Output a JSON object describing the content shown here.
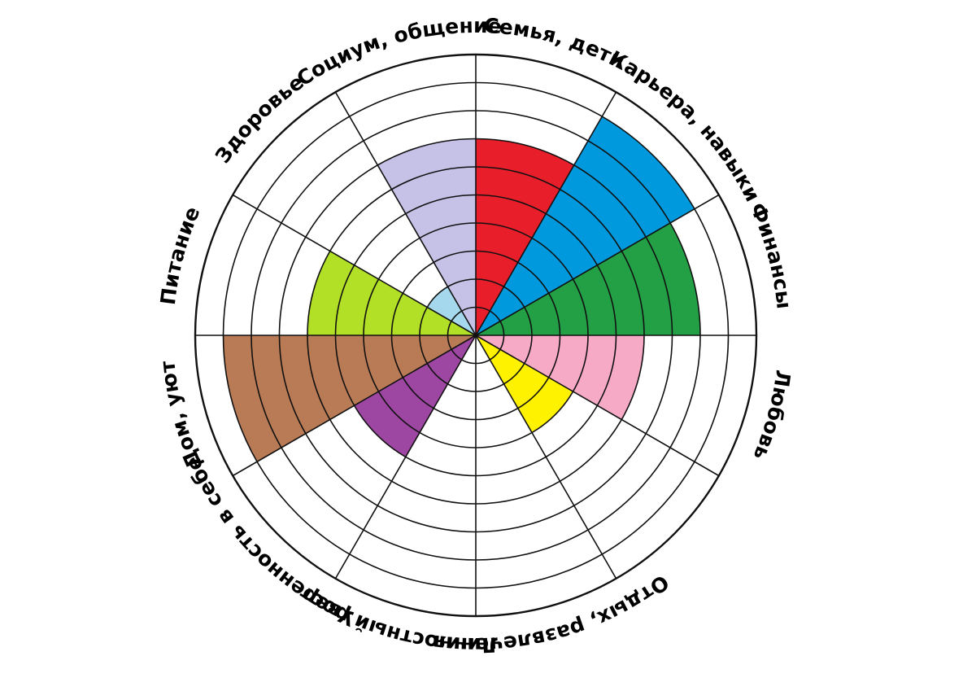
{
  "chart_data": {
    "type": "polar-area",
    "title": "",
    "rings": 10,
    "max_value": 10,
    "segments": [
      {
        "label": "Семья, дети",
        "value": 7,
        "color": "#e81f2b"
      },
      {
        "label": "Карьера, навыки",
        "value": 9,
        "color": "#0099dd"
      },
      {
        "label": "Финансы",
        "value": 8,
        "color": "#23a046"
      },
      {
        "label": "Любовь",
        "value": 6,
        "color": "#f7aac6"
      },
      {
        "label": "",
        "value": 4,
        "color": "#fff200"
      },
      {
        "label": "Отдых, развлечения",
        "value": 0,
        "color": "#ffffff"
      },
      {
        "label": "Личностный рост",
        "value": 0,
        "color": "#ffffff"
      },
      {
        "label": "Уверенность в себе",
        "value": 5,
        "color": "#9d47a3"
      },
      {
        "label": "Дом, уют",
        "value": 9,
        "color": "#b97b55"
      },
      {
        "label": "Питание",
        "value": 6,
        "color": "#b2e026"
      },
      {
        "label": "Здоровье",
        "value": 2,
        "color": "#a5d8ec"
      },
      {
        "label": "Социум, общение",
        "value": 7,
        "color": "#c6c1e6"
      }
    ]
  }
}
